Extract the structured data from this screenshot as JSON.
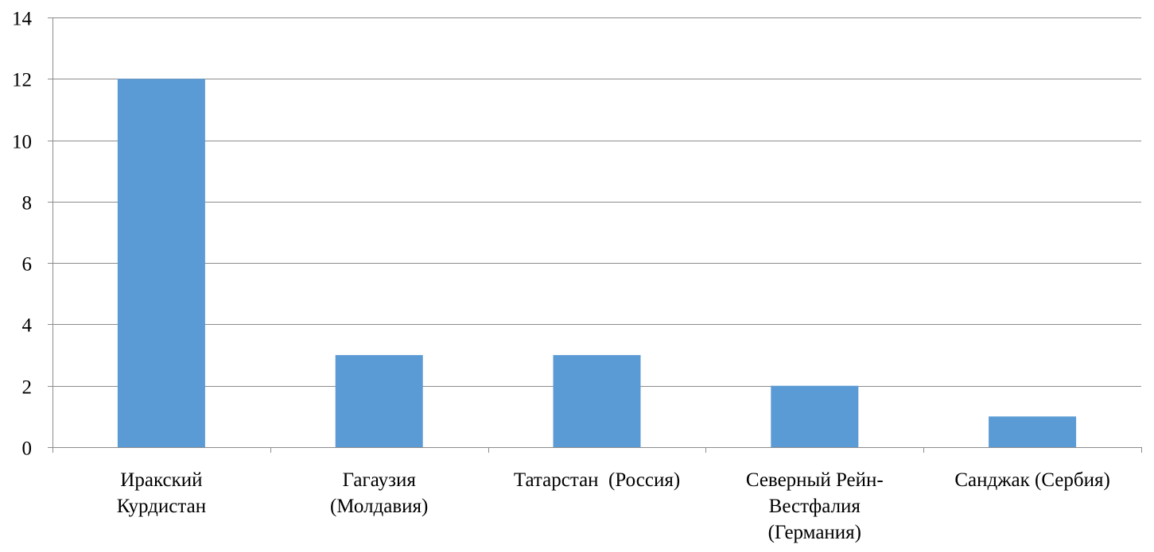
{
  "chart_data": {
    "type": "bar",
    "categories": [
      [
        "Иракский",
        "Курдистан"
      ],
      [
        "Гагаузия",
        "(Молдавия)"
      ],
      [
        "Татарстан  (Россия)"
      ],
      [
        "Северный Рейн-",
        "Вестфалия",
        "(Германия)"
      ],
      [
        "Санджак (Сербия)"
      ]
    ],
    "values": [
      12,
      3,
      3,
      2,
      1
    ],
    "title": "",
    "xlabel": "",
    "ylabel": "",
    "ylim": [
      0,
      14
    ],
    "yticks": [
      0,
      2,
      4,
      6,
      8,
      10,
      12,
      14
    ],
    "grid": true,
    "legend": "none",
    "bar_color": "#5b9bd5",
    "grid_color": "#8c8c8c"
  }
}
